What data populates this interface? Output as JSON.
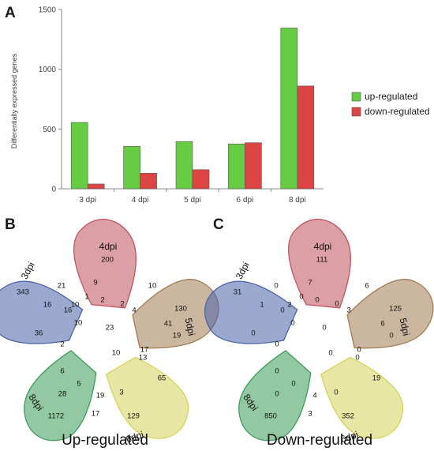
{
  "chart_data": [
    {
      "panel": "A",
      "type": "bar",
      "categories": [
        "3 dpi",
        "4 dpi",
        "5 dpi",
        "6 dpi",
        "8 dpi"
      ],
      "series": [
        {
          "name": "up-regulated",
          "color": "#66cc44",
          "values": [
            555,
            355,
            395,
            375,
            1345
          ]
        },
        {
          "name": "down-regulated",
          "color": "#dd4444",
          "values": [
            40,
            130,
            160,
            385,
            860
          ]
        }
      ],
      "ylabel": "Differentially expressed genes",
      "ylim": [
        0,
        1500
      ],
      "yticks": [
        "0",
        "500",
        "1000",
        "1500"
      ],
      "legend_placement": "right",
      "grid": false
    },
    {
      "panel": "B",
      "type": "venn",
      "caption": "Up-regulated",
      "sets": [
        {
          "name": "3dpi",
          "color": "#4a63a8"
        },
        {
          "name": "4dpi",
          "color": "#c0505c"
        },
        {
          "name": "5dpi",
          "color": "#a07a50"
        },
        {
          "name": "6dpi",
          "color": "#d6d25a"
        },
        {
          "name": "8dpi",
          "color": "#3a9c56"
        }
      ],
      "region_values": [
        "343",
        "200",
        "130",
        "129",
        "1172",
        "21",
        "9",
        "10",
        "41",
        "19",
        "65",
        "16",
        "17",
        "28",
        "36",
        "16",
        "10",
        "1",
        "2",
        "2",
        "4",
        "17",
        "13",
        "3",
        "19",
        "5",
        "6",
        "2",
        "10",
        "23",
        "10"
      ]
    },
    {
      "panel": "C",
      "type": "venn",
      "caption": "Down-regulated",
      "sets": [
        {
          "name": "3dpi",
          "color": "#4a63a8"
        },
        {
          "name": "4dpi",
          "color": "#c0505c"
        },
        {
          "name": "5dpi",
          "color": "#a07a50"
        },
        {
          "name": "6dpi",
          "color": "#d6d25a"
        },
        {
          "name": "8dpi",
          "color": "#3a9c56"
        }
      ],
      "region_values": [
        "31",
        "111",
        "125",
        "352",
        "850",
        "0",
        "7",
        "6",
        "6",
        "0",
        "19",
        "1",
        "3",
        "0",
        "0",
        "0",
        "2",
        "0",
        "0",
        "0",
        "3",
        "0",
        "0",
        "0",
        "4",
        "0",
        "0",
        "0",
        "0",
        "0",
        "0"
      ]
    }
  ]
}
